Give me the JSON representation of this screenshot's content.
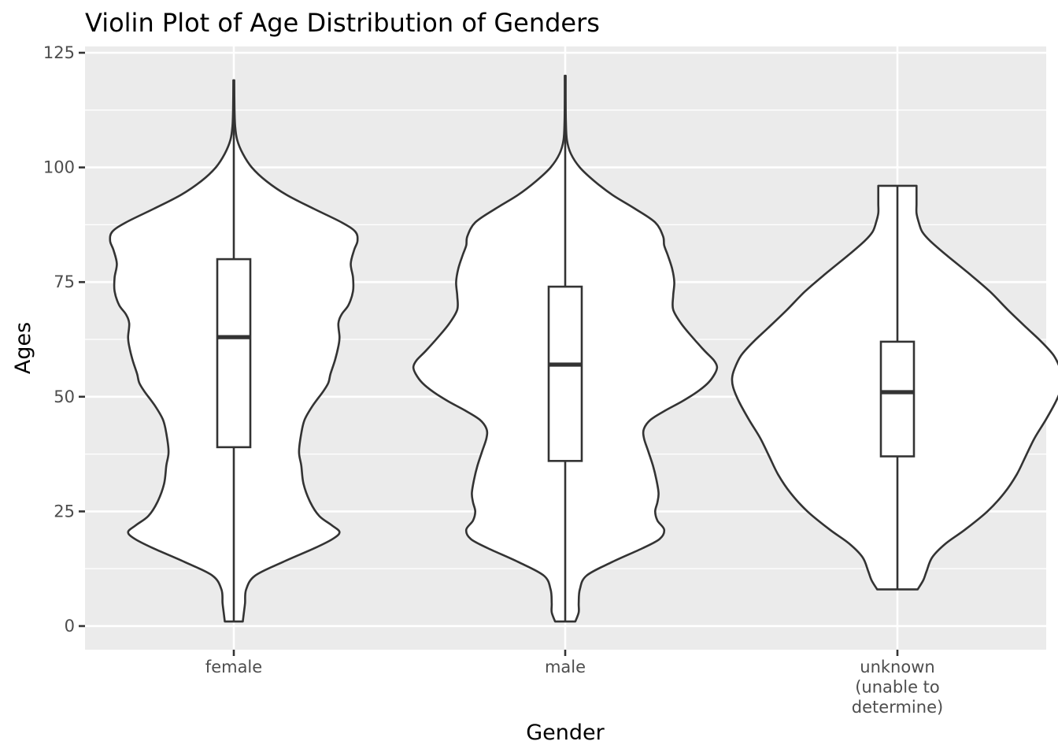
{
  "chart_data": {
    "type": "violin",
    "title": "Violin Plot of Age Distribution of Genders",
    "xlabel": "Gender",
    "ylabel": "Ages",
    "categories": [
      [
        "female"
      ],
      [
        "male"
      ],
      [
        "unknown",
        "(unable to",
        "determine)"
      ]
    ],
    "ylim": [
      -5,
      125
    ],
    "yticks": [
      0,
      25,
      50,
      75,
      100,
      125
    ],
    "grid": true,
    "groups": [
      {
        "min": 1,
        "max": 119,
        "box": {
          "q1": 39,
          "median": 63,
          "q3": 80,
          "whisker_low": 1,
          "whisker_high": 119
        },
        "density": [
          [
            1,
            0.08
          ],
          [
            3,
            0.09
          ],
          [
            5,
            0.1
          ],
          [
            8,
            0.11
          ],
          [
            11,
            0.19
          ],
          [
            14,
            0.44
          ],
          [
            17,
            0.72
          ],
          [
            19,
            0.88
          ],
          [
            20.5,
            0.94
          ],
          [
            22,
            0.87
          ],
          [
            24,
            0.76
          ],
          [
            27,
            0.68
          ],
          [
            31,
            0.62
          ],
          [
            35,
            0.6
          ],
          [
            38,
            0.58
          ],
          [
            42,
            0.6
          ],
          [
            45,
            0.63
          ],
          [
            48,
            0.7
          ],
          [
            51,
            0.79
          ],
          [
            53,
            0.84
          ],
          [
            55,
            0.86
          ],
          [
            58,
            0.9
          ],
          [
            61,
            0.93
          ],
          [
            63,
            0.94
          ],
          [
            66,
            0.93
          ],
          [
            68,
            0.96
          ],
          [
            70,
            1.02
          ],
          [
            73,
            1.06
          ],
          [
            76,
            1.06
          ],
          [
            79,
            1.04
          ],
          [
            82,
            1.07
          ],
          [
            84,
            1.1
          ],
          [
            86,
            1.08
          ],
          [
            88,
            0.96
          ],
          [
            91,
            0.71
          ],
          [
            94,
            0.47
          ],
          [
            97,
            0.29
          ],
          [
            100,
            0.16
          ],
          [
            103,
            0.08
          ],
          [
            106,
            0.03
          ],
          [
            109,
            0.012
          ],
          [
            113,
            0.006
          ],
          [
            119,
            0.004
          ]
        ]
      },
      {
        "min": 1,
        "max": 120,
        "box": {
          "q1": 36,
          "median": 57,
          "q3": 74,
          "whisker_low": 1,
          "whisker_high": 120
        },
        "density": [
          [
            1,
            0.09
          ],
          [
            3,
            0.12
          ],
          [
            5,
            0.12
          ],
          [
            8,
            0.13
          ],
          [
            11,
            0.19
          ],
          [
            14,
            0.42
          ],
          [
            17,
            0.69
          ],
          [
            19,
            0.84
          ],
          [
            21,
            0.88
          ],
          [
            23,
            0.82
          ],
          [
            25,
            0.8
          ],
          [
            27,
            0.82
          ],
          [
            29,
            0.83
          ],
          [
            32,
            0.81
          ],
          [
            35,
            0.78
          ],
          [
            38,
            0.74
          ],
          [
            41,
            0.7
          ],
          [
            43,
            0.7
          ],
          [
            45,
            0.76
          ],
          [
            47,
            0.89
          ],
          [
            49,
            1.04
          ],
          [
            51,
            1.17
          ],
          [
            53,
            1.27
          ],
          [
            55,
            1.33
          ],
          [
            56.5,
            1.35
          ],
          [
            58,
            1.32
          ],
          [
            60,
            1.24
          ],
          [
            63,
            1.13
          ],
          [
            66,
            1.03
          ],
          [
            69,
            0.96
          ],
          [
            72,
            0.96
          ],
          [
            75,
            0.97
          ],
          [
            78,
            0.95
          ],
          [
            81,
            0.91
          ],
          [
            83,
            0.88
          ],
          [
            85,
            0.87
          ],
          [
            88,
            0.8
          ],
          [
            91,
            0.62
          ],
          [
            94,
            0.42
          ],
          [
            97,
            0.26
          ],
          [
            100,
            0.13
          ],
          [
            103,
            0.05
          ],
          [
            106,
            0.015
          ],
          [
            110,
            0.006
          ],
          [
            115,
            0.004
          ],
          [
            120,
            0.004
          ]
        ]
      },
      {
        "min": 8,
        "max": 96,
        "box": {
          "q1": 37,
          "median": 51,
          "q3": 62,
          "whisker_low": 8,
          "whisker_high": 96
        },
        "density": [
          [
            8,
            0.18
          ],
          [
            10,
            0.23
          ],
          [
            12,
            0.26
          ],
          [
            15,
            0.31
          ],
          [
            18,
            0.43
          ],
          [
            21,
            0.6
          ],
          [
            25,
            0.8
          ],
          [
            29,
            0.95
          ],
          [
            33,
            1.06
          ],
          [
            37,
            1.14
          ],
          [
            41,
            1.22
          ],
          [
            45,
            1.32
          ],
          [
            49,
            1.41
          ],
          [
            52,
            1.46
          ],
          [
            54,
            1.47
          ],
          [
            56,
            1.45
          ],
          [
            59,
            1.39
          ],
          [
            62,
            1.28
          ],
          [
            65,
            1.15
          ],
          [
            69,
            0.98
          ],
          [
            73,
            0.82
          ],
          [
            77,
            0.63
          ],
          [
            81,
            0.43
          ],
          [
            84,
            0.29
          ],
          [
            86,
            0.22
          ],
          [
            88,
            0.19
          ],
          [
            90,
            0.17
          ],
          [
            92,
            0.17
          ],
          [
            94,
            0.17
          ],
          [
            96,
            0.17
          ]
        ]
      }
    ]
  }
}
